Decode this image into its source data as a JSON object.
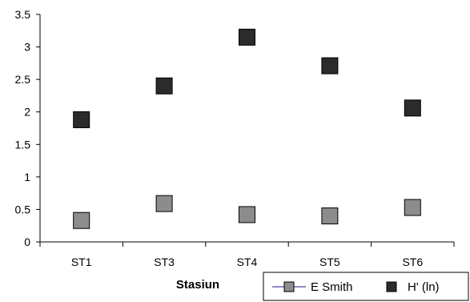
{
  "chart_data": {
    "type": "scatter",
    "categories": [
      "ST1",
      "ST3",
      "ST4",
      "ST5",
      "ST6"
    ],
    "series": [
      {
        "name": "E Smith",
        "values": [
          0.33,
          0.59,
          0.42,
          0.4,
          0.53
        ],
        "color": "#8c8c8c"
      },
      {
        "name": "H' (ln)",
        "values": [
          1.88,
          2.4,
          3.15,
          2.71,
          2.06
        ],
        "color": "#2b2b2b"
      }
    ],
    "xlabel": "Stasiun",
    "ylabel": "",
    "ylim": [
      0,
      3.5
    ],
    "yticks": [
      "0",
      "0.5",
      "1",
      "1.5",
      "2",
      "2.5",
      "3",
      "3.5"
    ],
    "grid": false,
    "legend_position": "bottom-right",
    "legend_line_color": "#1a1a8c"
  }
}
